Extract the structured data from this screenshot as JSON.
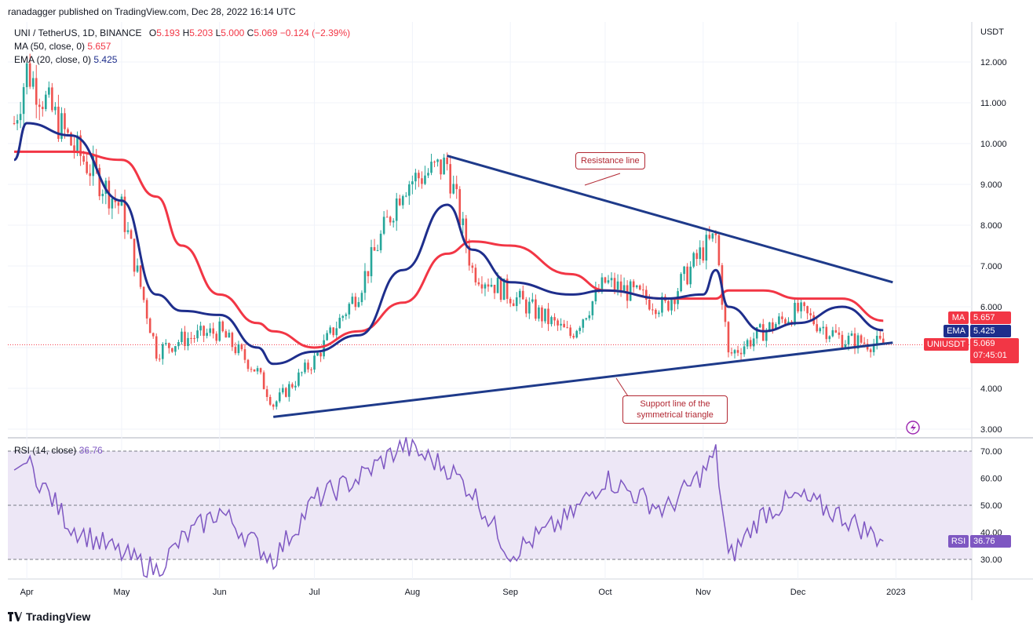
{
  "header": {
    "published": "ranadagger published on TradingView.com, Dec 28, 2022 16:14 UTC",
    "symbol": "UNI / TetherUS, 1D, BINANCE",
    "o_label": "O",
    "o_value": "5.193",
    "h_label": "H",
    "h_value": "5.203",
    "l_label": "L",
    "l_value": "5.000",
    "c_label": "C",
    "c_value": "5.069",
    "change": "−0.124 (−2.39%)",
    "ma_label": "MA (50, close, 0)",
    "ma_value": "5.657",
    "ema_label": "EMA (20, close, 0)",
    "ema_value": "5.425"
  },
  "rsi_header": {
    "label": "RSI (14, close)",
    "value": "36.76"
  },
  "price_axis": {
    "unit": "USDT",
    "ticks": [
      "12.000",
      "11.000",
      "10.000",
      "9.000",
      "8.000",
      "7.000",
      "6.000",
      "5.000",
      "4.000",
      "3.000"
    ],
    "ma_tag": "MA",
    "ma_tag_value": "5.657",
    "ema_tag": "EMA",
    "ema_tag_value": "5.425",
    "symbol_tag": "UNIUSDT",
    "price_tag_value": "5.069",
    "countdown": "07:45:01"
  },
  "rsi_axis": {
    "ticks": [
      "70.00",
      "60.00",
      "50.00",
      "40.00",
      "30.00"
    ],
    "tag": "RSI",
    "tag_value": "36.76"
  },
  "time_axis": {
    "labels": [
      "Apr",
      "May",
      "Jun",
      "Jul",
      "Aug",
      "Sep",
      "Oct",
      "Nov",
      "Dec",
      "2023"
    ]
  },
  "annotations": {
    "resistance": "Resistance line",
    "support": "Support line of the symmetrical triangle"
  },
  "footer": {
    "brand": "TradingView"
  },
  "colors": {
    "up": "#26a69a",
    "down": "#ef5350",
    "ma": "#f23645",
    "ema": "#1e2e8c",
    "trendline": "#1e3a8a",
    "rsi": "#7e57c2",
    "rsi_band": "#ede7f6",
    "annotation": "#b22833"
  },
  "chart_data": [
    {
      "type": "line",
      "title": "UNI / TetherUS, 1D, BINANCE",
      "ylabel": "USDT",
      "x_dates": [
        "2022-03-28",
        "2022-04-01",
        "2022-04-15",
        "2022-05-01",
        "2022-05-12",
        "2022-05-20",
        "2022-06-01",
        "2022-06-13",
        "2022-06-18",
        "2022-07-01",
        "2022-07-15",
        "2022-07-29",
        "2022-08-12",
        "2022-08-20",
        "2022-09-01",
        "2022-09-20",
        "2022-10-01",
        "2022-10-20",
        "2022-11-01",
        "2022-11-05",
        "2022-11-09",
        "2022-11-20",
        "2022-12-01",
        "2022-12-15",
        "2022-12-28"
      ],
      "ylim": [
        3.0,
        12.5
      ],
      "series": [
        {
          "name": "MA",
          "values": [
            9.8,
            9.8,
            9.8,
            9.6,
            8.7,
            7.5,
            6.3,
            5.6,
            5.4,
            5.0,
            5.4,
            6.1,
            7.3,
            7.6,
            7.5,
            6.8,
            6.4,
            6.2,
            6.2,
            6.2,
            6.4,
            6.4,
            6.2,
            6.2,
            5.657
          ]
        },
        {
          "name": "EMA",
          "values": [
            9.6,
            10.5,
            10.2,
            8.6,
            6.3,
            5.9,
            5.8,
            5.0,
            4.6,
            4.9,
            5.3,
            6.9,
            8.5,
            7.4,
            6.6,
            6.3,
            6.4,
            6.2,
            6.3,
            6.9,
            6.0,
            5.4,
            5.6,
            6.0,
            5.425
          ]
        }
      ],
      "close_approx": [
        10.5,
        11.8,
        10.0,
        8.4,
        4.9,
        5.2,
        5.4,
        4.4,
        3.6,
        4.7,
        6.4,
        9.0,
        9.5,
        6.9,
        6.3,
        5.3,
        6.6,
        6.0,
        7.4,
        7.7,
        4.8,
        5.4,
        5.9,
        5.2,
        5.069
      ],
      "trendlines": [
        {
          "name": "Resistance line",
          "from": [
            "2022-08-12",
            9.7
          ],
          "to": [
            "2022-12-31",
            6.6
          ]
        },
        {
          "name": "Support line of the symmetrical triangle",
          "from": [
            "2022-06-18",
            3.3
          ],
          "to": [
            "2022-12-31",
            5.12
          ]
        }
      ],
      "last": {
        "open": 5.193,
        "high": 5.203,
        "low": 5.0,
        "close": 5.069,
        "change": -0.124,
        "change_pct": -2.39
      }
    },
    {
      "type": "line",
      "title": "RSI (14, close)",
      "ylim": [
        22,
        73
      ],
      "bands": [
        30,
        70
      ],
      "x_dates": [
        "2022-03-28",
        "2022-04-01",
        "2022-04-15",
        "2022-05-01",
        "2022-05-12",
        "2022-05-20",
        "2022-06-01",
        "2022-06-13",
        "2022-06-18",
        "2022-07-01",
        "2022-07-15",
        "2022-07-29",
        "2022-08-12",
        "2022-08-20",
        "2022-09-01",
        "2022-09-20",
        "2022-10-01",
        "2022-10-20",
        "2022-11-01",
        "2022-11-05",
        "2022-11-09",
        "2022-11-20",
        "2022-12-01",
        "2022-12-15",
        "2022-12-28"
      ],
      "values": [
        63,
        66,
        42,
        32,
        26,
        37,
        48,
        35,
        30,
        52,
        60,
        72,
        64,
        55,
        32,
        46,
        60,
        48,
        62,
        69,
        30,
        47,
        53,
        46,
        36.76
      ]
    }
  ]
}
